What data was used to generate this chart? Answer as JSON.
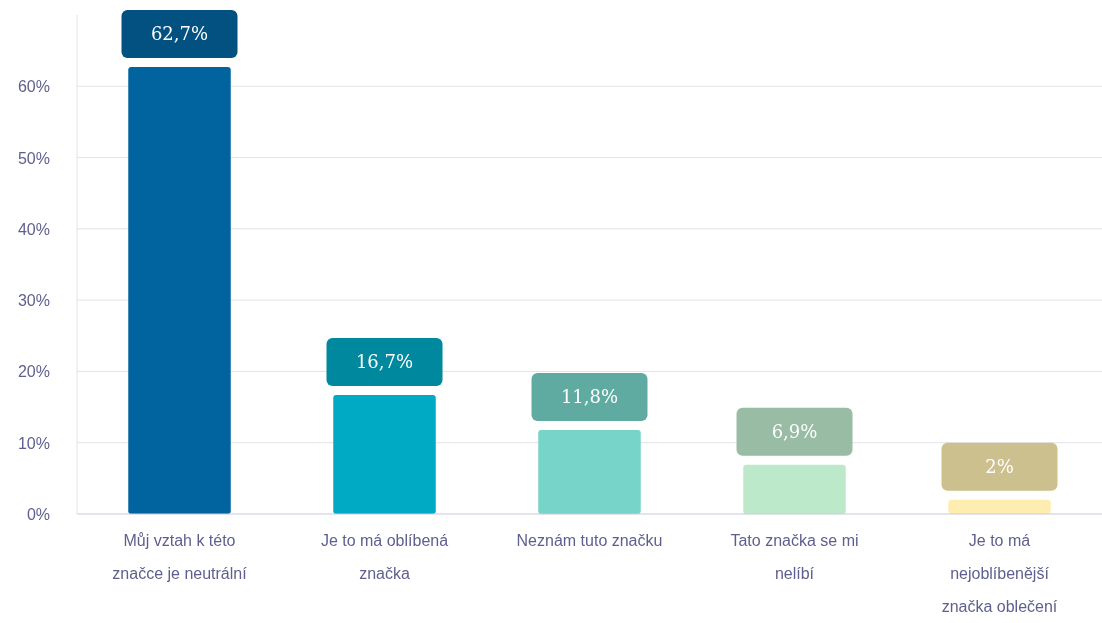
{
  "chart_data": {
    "type": "bar",
    "categories": [
      "Můj vztah k této značce je neutrální",
      "Je to má oblíbená značka",
      "Neznám tuto značku",
      "Tato značka se mi nelíbí",
      "Je to má nejoblíbenější značka oblečení"
    ],
    "values": [
      62.7,
      16.7,
      11.8,
      6.9,
      2
    ],
    "colors": [
      "#02649f",
      "#00a9c4",
      "#77d4c8",
      "#bde9cb",
      "#fdeeb0"
    ],
    "value_labels": [
      "62,7%",
      "16,7%",
      "11,8%",
      "6,9%",
      "2%"
    ],
    "ylim": [
      0,
      70
    ],
    "yticks": [
      {
        "value": 0,
        "label": "0%"
      },
      {
        "value": 10,
        "label": "10%"
      },
      {
        "value": 20,
        "label": "20%"
      },
      {
        "value": 30,
        "label": "30%"
      },
      {
        "value": 40,
        "label": "40%"
      },
      {
        "value": 50,
        "label": "50%"
      },
      {
        "value": 60,
        "label": "60%"
      }
    ],
    "grid": "y"
  }
}
